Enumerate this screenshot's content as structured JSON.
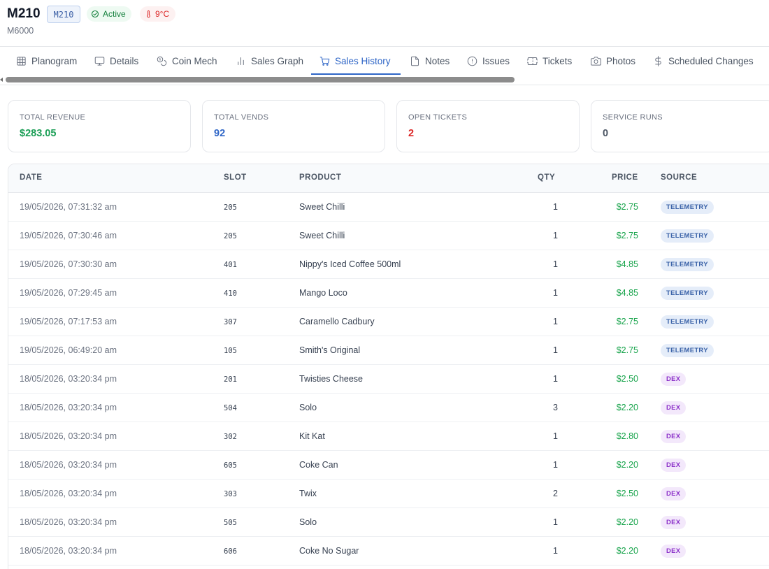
{
  "header": {
    "title": "M210",
    "code": "M210",
    "status": "Active",
    "temperature": "9°C",
    "model": "M6000"
  },
  "tabs": [
    {
      "label": "Planogram",
      "icon": "grid-icon"
    },
    {
      "label": "Details",
      "icon": "monitor-icon"
    },
    {
      "label": "Coin Mech",
      "icon": "coins-icon"
    },
    {
      "label": "Sales Graph",
      "icon": "bar-chart-icon"
    },
    {
      "label": "Sales History",
      "icon": "cart-icon",
      "active": true
    },
    {
      "label": "Notes",
      "icon": "file-icon"
    },
    {
      "label": "Issues",
      "icon": "alert-circle-icon"
    },
    {
      "label": "Tickets",
      "icon": "ticket-icon"
    },
    {
      "label": "Photos",
      "icon": "camera-icon"
    },
    {
      "label": "Scheduled Changes",
      "icon": "dollar-icon"
    }
  ],
  "stats": [
    {
      "label": "TOTAL REVENUE",
      "value": "$283.05",
      "color": "#1a9e55"
    },
    {
      "label": "TOTAL VENDS",
      "value": "92",
      "color": "#2f66c7"
    },
    {
      "label": "OPEN TICKETS",
      "value": "2",
      "color": "#dc2626"
    },
    {
      "label": "SERVICE RUNS",
      "value": "0",
      "color": "#4b5563"
    }
  ],
  "table": {
    "headers": {
      "date": "DATE",
      "slot": "SLOT",
      "product": "PRODUCT",
      "qty": "QTY",
      "price": "PRICE",
      "source": "SOURCE"
    },
    "rows": [
      {
        "date": "19/05/2026, 07:31:32 am",
        "slot": "205",
        "product": "Sweet Chilli",
        "qty": "1",
        "price": "$2.75",
        "source": "TELEMETRY"
      },
      {
        "date": "19/05/2026, 07:30:46 am",
        "slot": "205",
        "product": "Sweet Chilli",
        "qty": "1",
        "price": "$2.75",
        "source": "TELEMETRY"
      },
      {
        "date": "19/05/2026, 07:30:30 am",
        "slot": "401",
        "product": "Nippy's Iced Coffee 500ml",
        "qty": "1",
        "price": "$4.85",
        "source": "TELEMETRY"
      },
      {
        "date": "19/05/2026, 07:29:45 am",
        "slot": "410",
        "product": "Mango Loco",
        "qty": "1",
        "price": "$4.85",
        "source": "TELEMETRY"
      },
      {
        "date": "19/05/2026, 07:17:53 am",
        "slot": "307",
        "product": "Caramello Cadbury",
        "qty": "1",
        "price": "$2.75",
        "source": "TELEMETRY"
      },
      {
        "date": "19/05/2026, 06:49:20 am",
        "slot": "105",
        "product": "Smith's Original",
        "qty": "1",
        "price": "$2.75",
        "source": "TELEMETRY"
      },
      {
        "date": "18/05/2026, 03:20:34 pm",
        "slot": "201",
        "product": "Twisties Cheese",
        "qty": "1",
        "price": "$2.50",
        "source": "DEX"
      },
      {
        "date": "18/05/2026, 03:20:34 pm",
        "slot": "504",
        "product": "Solo",
        "qty": "3",
        "price": "$2.20",
        "source": "DEX"
      },
      {
        "date": "18/05/2026, 03:20:34 pm",
        "slot": "302",
        "product": "Kit Kat",
        "qty": "1",
        "price": "$2.80",
        "source": "DEX"
      },
      {
        "date": "18/05/2026, 03:20:34 pm",
        "slot": "605",
        "product": "Coke Can",
        "qty": "1",
        "price": "$2.20",
        "source": "DEX"
      },
      {
        "date": "18/05/2026, 03:20:34 pm",
        "slot": "303",
        "product": "Twix",
        "qty": "2",
        "price": "$2.50",
        "source": "DEX"
      },
      {
        "date": "18/05/2026, 03:20:34 pm",
        "slot": "505",
        "product": "Solo",
        "qty": "1",
        "price": "$2.20",
        "source": "DEX"
      },
      {
        "date": "18/05/2026, 03:20:34 pm",
        "slot": "606",
        "product": "Coke No Sugar",
        "qty": "1",
        "price": "$2.20",
        "source": "DEX"
      }
    ]
  },
  "colors": {
    "accent": "#2f66c7",
    "price": "#16a34a",
    "telemetry_bg": "#e5edf9",
    "dex_bg": "#f3e8fb"
  }
}
